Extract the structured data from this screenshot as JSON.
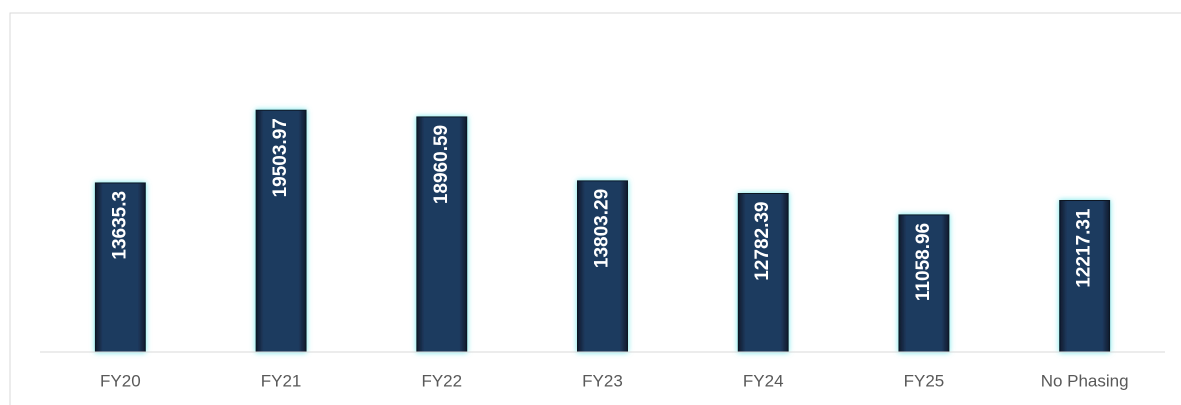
{
  "chart_data": {
    "type": "bar",
    "categories": [
      "FY20",
      "FY21",
      "FY22",
      "FY23",
      "FY24",
      "FY25",
      "No Phasing"
    ],
    "values": [
      13635.3,
      19503.97,
      18960.59,
      13803.29,
      12782.39,
      11058.96,
      12217.31
    ],
    "color": "#1b2f4e",
    "ylim": [
      0,
      25000
    ]
  }
}
